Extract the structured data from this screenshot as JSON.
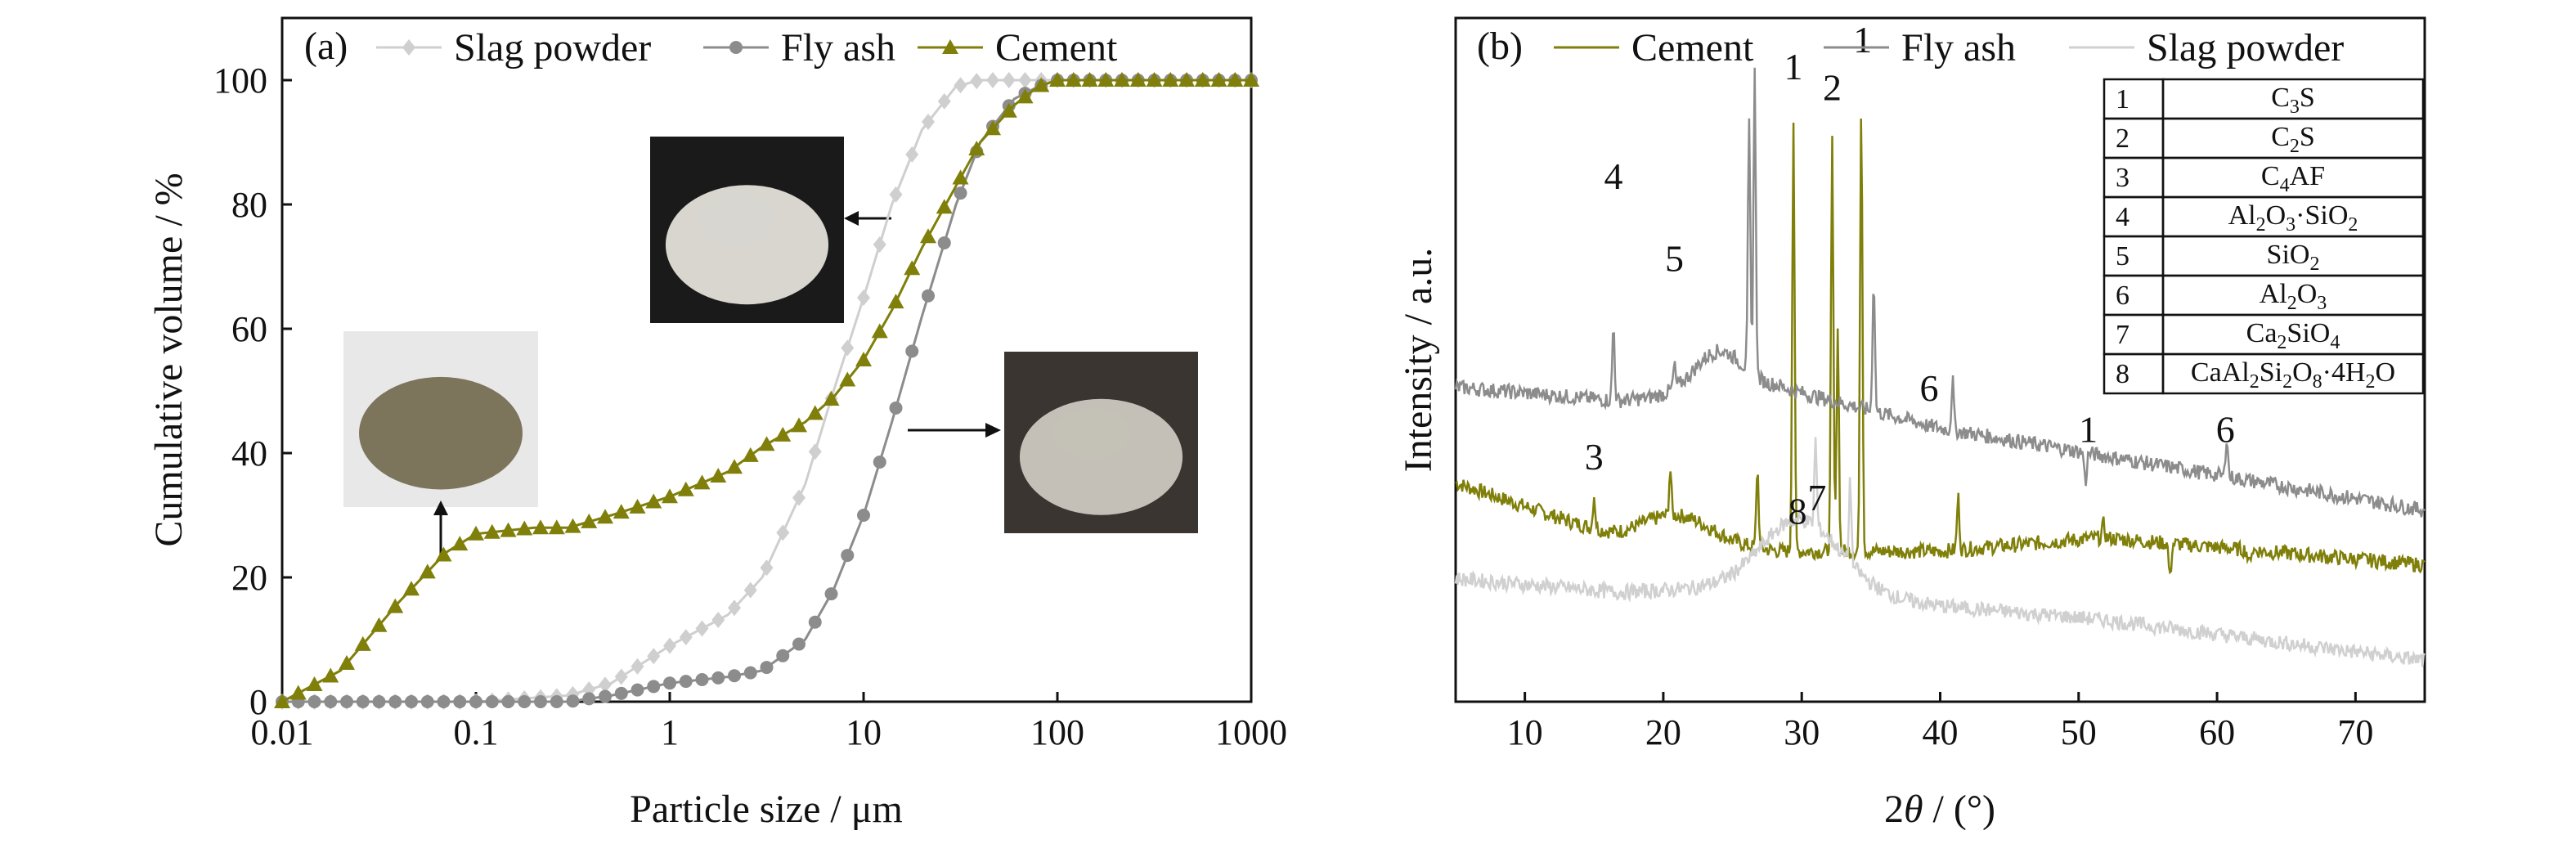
{
  "colors": {
    "cement": "#7f7f0a",
    "fly_ash": "#8c8c8c",
    "slag": "#cfcfcf",
    "xrd_slag": "#d0d0d0"
  },
  "chart_data": [
    {
      "panel_label": "(a)",
      "type": "line",
      "xscale": "log",
      "xlabel": "Particle size / μm",
      "ylabel": "Cumulative volume / %",
      "xlim": [
        0.01,
        1000
      ],
      "ylim": [
        0,
        110
      ],
      "xticks": [
        0.01,
        0.1,
        1,
        10,
        100,
        1000
      ],
      "xtick_labels": [
        "0.01",
        "0.1",
        "1",
        "10",
        "100",
        "1000"
      ],
      "yticks": [
        0,
        20,
        40,
        60,
        80,
        100
      ],
      "ytick_labels": [
        "0",
        "20",
        "40",
        "60",
        "80",
        "100"
      ],
      "legend_position": "top",
      "series": [
        {
          "name": "Slag powder",
          "marker": "diamond",
          "color": "#cfcfcf",
          "x": [
            0.01,
            0.1,
            0.3,
            0.5,
            1,
            2,
            3,
            5,
            7,
            10,
            14,
            20,
            30,
            40,
            60,
            100,
            300,
            1000
          ],
          "y": [
            0,
            0,
            1,
            3,
            9,
            14,
            20,
            35,
            50,
            65,
            80,
            92,
            99,
            100,
            100,
            100,
            100,
            100
          ]
        },
        {
          "name": "Fly ash",
          "marker": "circle",
          "color": "#8c8c8c",
          "x": [
            0.01,
            0.1,
            0.3,
            0.5,
            1,
            2,
            3,
            5,
            7,
            10,
            14,
            20,
            30,
            40,
            60,
            80,
            100,
            300,
            1000
          ],
          "y": [
            0,
            0,
            0,
            1,
            3,
            4,
            5,
            10,
            18,
            30,
            45,
            62,
            80,
            90,
            97,
            99,
            100,
            100,
            100
          ]
        },
        {
          "name": "Cement",
          "marker": "triangle",
          "color": "#7f7f0a",
          "x": [
            0.01,
            0.02,
            0.04,
            0.07,
            0.1,
            0.2,
            0.3,
            0.5,
            1,
            2,
            3,
            5,
            7,
            10,
            14,
            20,
            30,
            40,
            60,
            80,
            100,
            300,
            1000
          ],
          "y": [
            0,
            5,
            16,
            24,
            27,
            28,
            28,
            30,
            33,
            37,
            41,
            45,
            49,
            55,
            63,
            73,
            83,
            90,
            96,
            99,
            100,
            100,
            100
          ]
        }
      ]
    },
    {
      "panel_label": "(b)",
      "type": "line",
      "xlabel_prefix": "2",
      "xlabel_theta": "θ",
      "xlabel_suffix": " / (°)",
      "ylabel": "Intensity / a.u.",
      "xlim": [
        5,
        75
      ],
      "xticks": [
        10,
        20,
        30,
        40,
        50,
        60,
        70
      ],
      "xtick_labels": [
        "10",
        "20",
        "30",
        "40",
        "50",
        "60",
        "70"
      ],
      "legend_position": "top",
      "series": [
        {
          "name": "Cement",
          "color": "#7f7f0a",
          "baseline_y": [
            32,
            24,
            22,
            22,
            24,
            22,
            20
          ],
          "peaks": [
            [
              15,
              30
            ],
            [
              20.5,
              30
            ],
            [
              26.8,
              34
            ],
            [
              29.4,
              85
            ],
            [
              32.2,
              82
            ],
            [
              32.6,
              55
            ],
            [
              34.3,
              88
            ],
            [
              41.3,
              30
            ],
            [
              51.8,
              26
            ],
            [
              56.6,
              18
            ],
            [
              62.3,
              20
            ]
          ]
        },
        {
          "name": "Fly ash",
          "color": "#8c8c8c",
          "baseline_y": [
            46,
            44,
            46,
            40,
            36,
            32,
            28
          ],
          "peaks": [
            [
              16.4,
              55
            ],
            [
              20.8,
              48
            ],
            [
              26.2,
              82
            ],
            [
              26.6,
              90
            ],
            [
              35.2,
              62
            ],
            [
              39.2,
              40
            ],
            [
              40.9,
              47
            ],
            [
              50.5,
              32
            ],
            [
              60.7,
              39
            ]
          ]
        },
        {
          "name": "Slag powder",
          "color": "#d0d0d0",
          "baseline_y": [
            18,
            16,
            17,
            14,
            12,
            9,
            6
          ],
          "peaks": [
            [
              31,
              29
            ],
            [
              33.5,
              28
            ]
          ]
        }
      ],
      "peak_labels": [
        {
          "text": "4",
          "x": 16.4,
          "y": 75
        },
        {
          "text": "5",
          "x": 20.8,
          "y": 63
        },
        {
          "text": "1",
          "x": 29.4,
          "y": 91
        },
        {
          "text": "2",
          "x": 32.2,
          "y": 88
        },
        {
          "text": "1",
          "x": 34.4,
          "y": 95
        },
        {
          "text": "3",
          "x": 15.0,
          "y": 34
        },
        {
          "text": "8",
          "x": 29.7,
          "y": 26
        },
        {
          "text": "7",
          "x": 31.1,
          "y": 28
        },
        {
          "text": "6",
          "x": 39.2,
          "y": 44
        },
        {
          "text": "1",
          "x": 50.7,
          "y": 38
        },
        {
          "text": "6",
          "x": 60.6,
          "y": 38
        }
      ],
      "phase_table": [
        {
          "num": "1",
          "parts": [
            [
              "C",
              ""
            ],
            [
              "3",
              "sub"
            ],
            [
              "S",
              ""
            ]
          ]
        },
        {
          "num": "2",
          "parts": [
            [
              "C",
              ""
            ],
            [
              "2",
              "sub"
            ],
            [
              "S",
              ""
            ]
          ]
        },
        {
          "num": "3",
          "parts": [
            [
              "C",
              ""
            ],
            [
              "4",
              "sub"
            ],
            [
              "AF",
              ""
            ]
          ]
        },
        {
          "num": "4",
          "parts": [
            [
              "Al",
              ""
            ],
            [
              "2",
              "sub"
            ],
            [
              "O",
              ""
            ],
            [
              "3",
              "sub"
            ],
            [
              "·SiO",
              ""
            ],
            [
              "2",
              "sub"
            ]
          ]
        },
        {
          "num": "5",
          "parts": [
            [
              "SiO",
              ""
            ],
            [
              "2",
              "sub"
            ]
          ]
        },
        {
          "num": "6",
          "parts": [
            [
              "Al",
              ""
            ],
            [
              "2",
              "sub"
            ],
            [
              "O",
              ""
            ],
            [
              "3",
              "sub"
            ]
          ]
        },
        {
          "num": "7",
          "parts": [
            [
              "Ca",
              ""
            ],
            [
              "2",
              "sub"
            ],
            [
              "SiO",
              ""
            ],
            [
              "4",
              "sub"
            ]
          ]
        },
        {
          "num": "8",
          "parts": [
            [
              "CaAl",
              ""
            ],
            [
              "2",
              "sub"
            ],
            [
              "Si",
              ""
            ],
            [
              "2",
              "sub"
            ],
            [
              "O",
              ""
            ],
            [
              "8",
              "sub"
            ],
            [
              "·4H",
              ""
            ],
            [
              "2",
              "sub"
            ],
            [
              "O",
              ""
            ]
          ]
        }
      ]
    }
  ]
}
